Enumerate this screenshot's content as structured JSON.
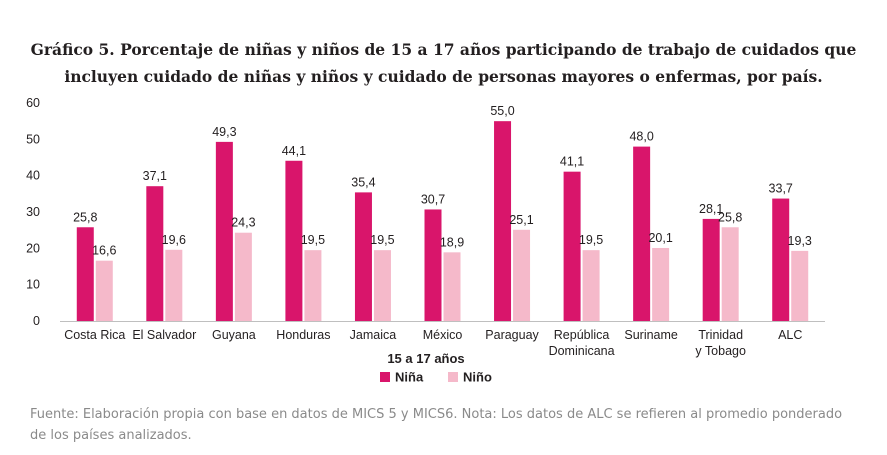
{
  "chart_data": {
    "type": "bar",
    "title": "Gráfico 5. Porcentaje de niñas y niños de 15 a 17 años participando de trabajo de cuidados que incluyen cuidado de niñas y niños y cuidado de personas mayores o enfermas, por país.",
    "xlabel": "15 a 17 años",
    "ylabel": "",
    "ylim": [
      0,
      60
    ],
    "yticks": [
      "0",
      "10",
      "20",
      "30",
      "40",
      "50",
      "60"
    ],
    "categories": [
      [
        "Costa Rica"
      ],
      [
        "El Salvador"
      ],
      [
        "Guyana"
      ],
      [
        "Honduras"
      ],
      [
        "Jamaica"
      ],
      [
        "México"
      ],
      [
        "Paraguay"
      ],
      [
        "República",
        "Dominicana"
      ],
      [
        "Suriname"
      ],
      [
        "Trinidad",
        "y Tobago"
      ],
      [
        "ALC"
      ]
    ],
    "series": [
      {
        "name": "Niña",
        "color": "#d9156b",
        "values": [
          25.8,
          37.1,
          49.3,
          44.1,
          35.4,
          30.7,
          55.0,
          41.1,
          48.0,
          28.1,
          33.7
        ],
        "labels": [
          "25,8",
          "37,1",
          "49,3",
          "44,1",
          "35,4",
          "30,7",
          "55,0",
          "41,1",
          "48,0",
          "28,1",
          "33,7"
        ]
      },
      {
        "name": "Niño",
        "color": "#f5b9ca",
        "values": [
          16.6,
          19.6,
          24.3,
          19.5,
          19.5,
          18.9,
          25.1,
          19.5,
          20.1,
          25.8,
          19.3
        ],
        "labels": [
          "16,6",
          "19,6",
          "24,3",
          "19,5",
          "19,5",
          "18,9",
          "25,1",
          "19,5",
          "20,1",
          "25,8",
          "19,3"
        ]
      }
    ],
    "legend_position": "bottom",
    "grid": false
  },
  "source_note": "Fuente: Elaboración propia con base en datos de MICS 5 y MICS6. Nota: Los datos de ALC se refieren al promedio ponderado de los países analizados."
}
